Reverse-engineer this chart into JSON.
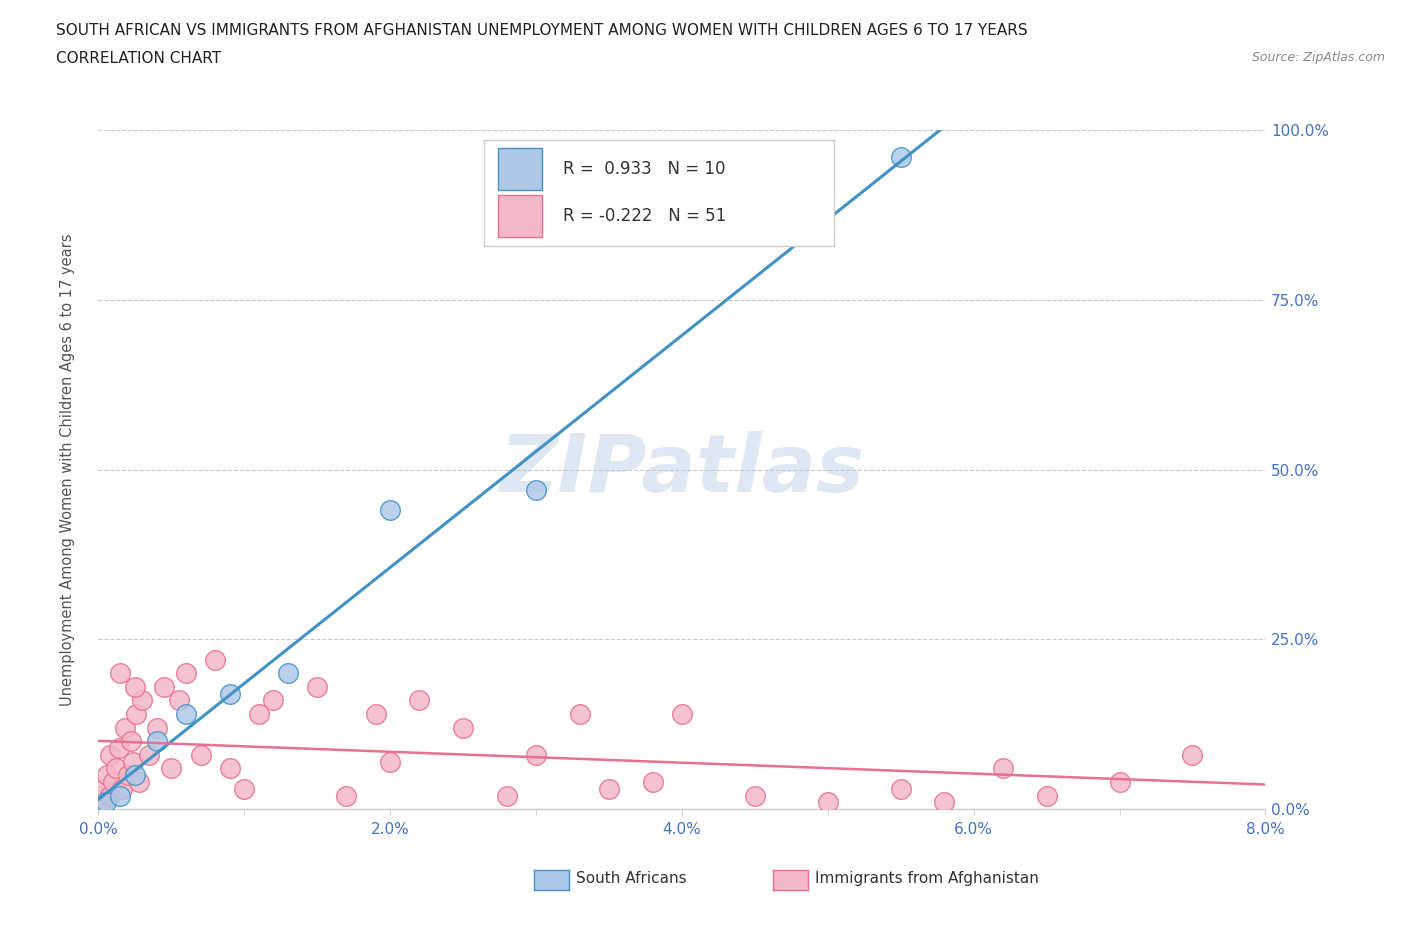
{
  "title_line1": "SOUTH AFRICAN VS IMMIGRANTS FROM AFGHANISTAN UNEMPLOYMENT AMONG WOMEN WITH CHILDREN AGES 6 TO 17 YEARS",
  "title_line2": "CORRELATION CHART",
  "source": "Source: ZipAtlas.com",
  "xlabel_ticks": [
    "0.0%",
    "2.0%",
    "4.0%",
    "6.0%",
    "8.0%"
  ],
  "xlabel_vals": [
    0.0,
    2.0,
    4.0,
    6.0,
    8.0
  ],
  "ylabel_ticks": [
    "0.0%",
    "25.0%",
    "50.0%",
    "75.0%",
    "100.0%"
  ],
  "ylabel_vals": [
    0.0,
    25.0,
    50.0,
    75.0,
    100.0
  ],
  "xlim": [
    0.0,
    8.0
  ],
  "ylim": [
    0.0,
    100.0
  ],
  "ylabel": "Unemployment Among Women with Children Ages 6 to 17 years",
  "watermark": "ZIPatlas",
  "blue_color": "#aec8e8",
  "pink_color": "#f4b8c8",
  "blue_line_color": "#4292c6",
  "pink_line_color": "#e87090",
  "r_blue": 0.933,
  "n_blue": 10,
  "r_pink": -0.222,
  "n_pink": 51,
  "south_africans_x": [
    0.05,
    0.15,
    0.25,
    0.4,
    0.6,
    0.9,
    1.3,
    2.0,
    3.0,
    5.5
  ],
  "south_africans_y": [
    1.0,
    2.0,
    5.0,
    10.0,
    14.0,
    17.0,
    20.0,
    44.0,
    47.0,
    96.0
  ],
  "immigrants_x": [
    0.0,
    0.02,
    0.04,
    0.06,
    0.08,
    0.08,
    0.1,
    0.12,
    0.14,
    0.16,
    0.18,
    0.2,
    0.22,
    0.24,
    0.26,
    0.28,
    0.3,
    0.35,
    0.4,
    0.45,
    0.5,
    0.6,
    0.7,
    0.8,
    0.9,
    1.0,
    1.2,
    1.5,
    1.7,
    1.9,
    2.0,
    2.2,
    2.5,
    2.8,
    3.0,
    3.3,
    3.5,
    3.8,
    4.0,
    4.5,
    5.0,
    5.5,
    5.8,
    6.2,
    6.5,
    7.0,
    7.5,
    0.15,
    0.25,
    0.55,
    1.1
  ],
  "immigrants_y": [
    2.0,
    1.0,
    3.0,
    5.0,
    2.0,
    8.0,
    4.0,
    6.0,
    9.0,
    3.0,
    12.0,
    5.0,
    10.0,
    7.0,
    14.0,
    4.0,
    16.0,
    8.0,
    12.0,
    18.0,
    6.0,
    20.0,
    8.0,
    22.0,
    6.0,
    3.0,
    16.0,
    18.0,
    2.0,
    14.0,
    7.0,
    16.0,
    12.0,
    2.0,
    8.0,
    14.0,
    3.0,
    4.0,
    14.0,
    2.0,
    1.0,
    3.0,
    1.0,
    6.0,
    2.0,
    4.0,
    8.0,
    20.0,
    18.0,
    16.0,
    14.0
  ]
}
